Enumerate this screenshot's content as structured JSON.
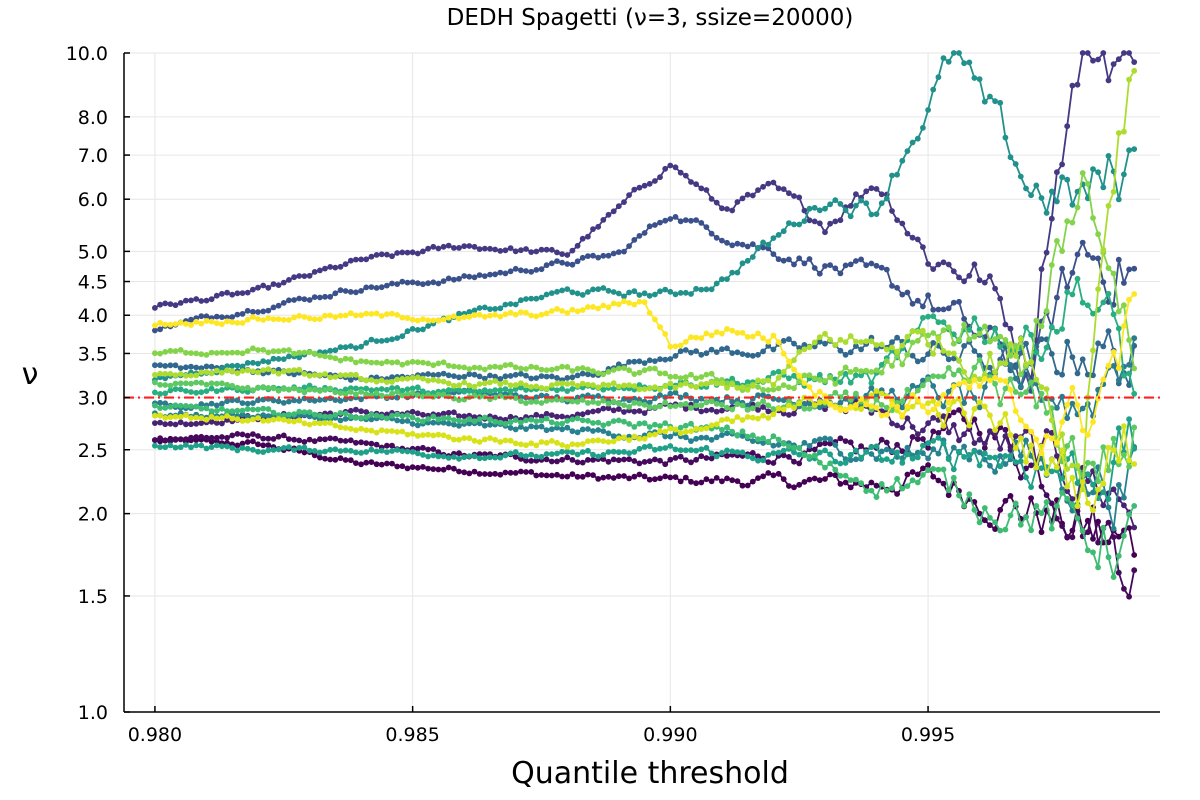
{
  "chart_data": {
    "type": "line",
    "title": "DEDH Spagetti (ν=3, ssize=20000)",
    "xlabel": "Quantile threshold",
    "ylabel": "ν",
    "xlim": [
      0.9794,
      0.9995
    ],
    "ylim": [
      1.0,
      10.0
    ],
    "yscale": "log",
    "grid": true,
    "legend": "none",
    "xticks": [
      0.98,
      0.985,
      0.99,
      0.995
    ],
    "xtick_labels": [
      "0.980",
      "0.985",
      "0.990",
      "0.995"
    ],
    "yticks": [
      1.0,
      1.5,
      2.0,
      2.5,
      3.0,
      3.5,
      4.0,
      4.5,
      5.0,
      6.0,
      7.0,
      8.0,
      10.0
    ],
    "ytick_labels": [
      "1.0",
      "1.5",
      "2.0",
      "2.5",
      "3.0",
      "3.5",
      "4.0",
      "4.5",
      "5.0",
      "6.0",
      "7.0",
      "8.0",
      "10.0"
    ],
    "reference_line": {
      "y": 3.0,
      "color": "#ff2020",
      "style": "dashdot"
    },
    "x_start": 0.98,
    "x_end": 0.999,
    "series": [
      {
        "color": "#440154",
        "points": [
          [
            0.98,
            2.58
          ],
          [
            0.982,
            2.55
          ],
          [
            0.984,
            2.38
          ],
          [
            0.986,
            2.33
          ],
          [
            0.988,
            2.28
          ],
          [
            0.99,
            2.25
          ],
          [
            0.992,
            2.24
          ],
          [
            0.994,
            2.22
          ],
          [
            0.995,
            2.26
          ],
          [
            0.996,
            2.12
          ],
          [
            0.997,
            2.02
          ],
          [
            0.998,
            1.88
          ],
          [
            0.999,
            1.74
          ]
        ]
      },
      {
        "color": "#450a5c",
        "points": [
          [
            0.98,
            2.6
          ],
          [
            0.982,
            2.62
          ],
          [
            0.984,
            2.55
          ],
          [
            0.986,
            2.45
          ],
          [
            0.988,
            2.42
          ],
          [
            0.99,
            2.4
          ],
          [
            0.992,
            2.45
          ],
          [
            0.994,
            2.5
          ],
          [
            0.995,
            2.62
          ],
          [
            0.996,
            2.75
          ],
          [
            0.997,
            2.4
          ],
          [
            0.998,
            2.0
          ],
          [
            0.999,
            1.72
          ]
        ]
      },
      {
        "color": "#482374",
        "points": [
          [
            0.98,
            2.73
          ],
          [
            0.982,
            2.8
          ],
          [
            0.984,
            2.85
          ],
          [
            0.986,
            2.8
          ],
          [
            0.988,
            2.82
          ],
          [
            0.99,
            2.9
          ],
          [
            0.992,
            2.92
          ],
          [
            0.994,
            2.88
          ],
          [
            0.995,
            2.7
          ],
          [
            0.996,
            2.6
          ],
          [
            0.997,
            2.45
          ],
          [
            0.998,
            2.3
          ],
          [
            0.999,
            2.05
          ]
        ]
      },
      {
        "color": "#443983",
        "points": [
          [
            0.98,
            4.12
          ],
          [
            0.982,
            4.35
          ],
          [
            0.984,
            4.85
          ],
          [
            0.986,
            5.1
          ],
          [
            0.988,
            4.95
          ],
          [
            0.989,
            5.8
          ],
          [
            0.99,
            6.8
          ],
          [
            0.991,
            5.8
          ],
          [
            0.992,
            6.2
          ],
          [
            0.993,
            5.5
          ],
          [
            0.994,
            6.4
          ],
          [
            0.995,
            4.9
          ],
          [
            0.996,
            4.6
          ],
          [
            0.997,
            3.4
          ],
          [
            0.998,
            10.0
          ],
          [
            0.999,
            10.0
          ]
        ]
      },
      {
        "color": "#3b518b",
        "points": [
          [
            0.98,
            3.82
          ],
          [
            0.982,
            4.1
          ],
          [
            0.984,
            4.4
          ],
          [
            0.986,
            4.55
          ],
          [
            0.988,
            4.8
          ],
          [
            0.989,
            4.95
          ],
          [
            0.99,
            5.7
          ],
          [
            0.991,
            5.3
          ],
          [
            0.992,
            5.0
          ],
          [
            0.993,
            4.75
          ],
          [
            0.994,
            4.55
          ],
          [
            0.995,
            4.2
          ],
          [
            0.996,
            3.7
          ],
          [
            0.997,
            3.2
          ],
          [
            0.998,
            5.0
          ],
          [
            0.999,
            4.7
          ]
        ]
      },
      {
        "color": "#31688e",
        "points": [
          [
            0.98,
            3.35
          ],
          [
            0.982,
            3.3
          ],
          [
            0.984,
            3.2
          ],
          [
            0.986,
            3.25
          ],
          [
            0.988,
            3.2
          ],
          [
            0.99,
            3.5
          ],
          [
            0.992,
            3.55
          ],
          [
            0.994,
            3.6
          ],
          [
            0.995,
            3.5
          ],
          [
            0.996,
            3.45
          ],
          [
            0.997,
            3.3
          ],
          [
            0.998,
            3.6
          ],
          [
            0.999,
            3.4
          ]
        ]
      },
      {
        "color": "#2c7c8e",
        "points": [
          [
            0.98,
            2.92
          ],
          [
            0.982,
            2.96
          ],
          [
            0.984,
            3.0
          ],
          [
            0.986,
            3.05
          ],
          [
            0.988,
            2.98
          ],
          [
            0.99,
            3.02
          ],
          [
            0.992,
            2.98
          ],
          [
            0.994,
            3.0
          ],
          [
            0.995,
            3.05
          ],
          [
            0.996,
            2.95
          ],
          [
            0.997,
            3.2
          ],
          [
            0.998,
            2.9
          ],
          [
            0.999,
            3.8
          ]
        ]
      },
      {
        "color": "#26828e",
        "points": [
          [
            0.98,
            2.82
          ],
          [
            0.982,
            2.82
          ],
          [
            0.984,
            2.78
          ],
          [
            0.986,
            2.72
          ],
          [
            0.988,
            2.68
          ],
          [
            0.99,
            2.62
          ],
          [
            0.992,
            2.55
          ],
          [
            0.994,
            2.5
          ],
          [
            0.995,
            2.45
          ],
          [
            0.996,
            2.52
          ],
          [
            0.997,
            2.4
          ],
          [
            0.998,
            2.25
          ],
          [
            0.999,
            2.2
          ]
        ]
      },
      {
        "color": "#21918c",
        "points": [
          [
            0.98,
            3.2
          ],
          [
            0.982,
            3.4
          ],
          [
            0.984,
            3.6
          ],
          [
            0.986,
            4.0
          ],
          [
            0.988,
            4.35
          ],
          [
            0.99,
            4.3
          ],
          [
            0.991,
            4.5
          ],
          [
            0.992,
            5.2
          ],
          [
            0.993,
            6.0
          ],
          [
            0.994,
            5.8
          ],
          [
            0.995,
            8.2
          ],
          [
            0.9955,
            10.0
          ],
          [
            0.996,
            8.5
          ],
          [
            0.997,
            6.2
          ],
          [
            0.998,
            6.0
          ],
          [
            0.999,
            6.8
          ]
        ]
      },
      {
        "color": "#1fa088",
        "points": [
          [
            0.98,
            2.55
          ],
          [
            0.982,
            2.5
          ],
          [
            0.984,
            2.5
          ],
          [
            0.986,
            2.45
          ],
          [
            0.988,
            2.45
          ],
          [
            0.99,
            2.5
          ],
          [
            0.992,
            2.45
          ],
          [
            0.994,
            2.42
          ],
          [
            0.995,
            2.45
          ],
          [
            0.996,
            2.5
          ],
          [
            0.997,
            2.4
          ],
          [
            0.998,
            2.3
          ],
          [
            0.999,
            2.5
          ]
        ]
      },
      {
        "color": "#28ae80",
        "points": [
          [
            0.98,
            3.05
          ],
          [
            0.982,
            3.1
          ],
          [
            0.984,
            3.1
          ],
          [
            0.986,
            3.05
          ],
          [
            0.988,
            3.1
          ],
          [
            0.99,
            3.15
          ],
          [
            0.992,
            3.2
          ],
          [
            0.994,
            3.2
          ],
          [
            0.995,
            3.8
          ],
          [
            0.996,
            3.9
          ],
          [
            0.997,
            3.6
          ],
          [
            0.998,
            4.5
          ],
          [
            0.999,
            3.1
          ]
        ]
      },
      {
        "color": "#3fbc73",
        "points": [
          [
            0.98,
            2.9
          ],
          [
            0.982,
            2.85
          ],
          [
            0.984,
            2.82
          ],
          [
            0.986,
            2.78
          ],
          [
            0.988,
            2.75
          ],
          [
            0.99,
            2.72
          ],
          [
            0.992,
            2.6
          ],
          [
            0.993,
            2.35
          ],
          [
            0.994,
            2.22
          ],
          [
            0.995,
            2.25
          ],
          [
            0.996,
            2.1
          ],
          [
            0.997,
            2.0
          ],
          [
            0.998,
            1.88
          ],
          [
            0.999,
            1.8
          ]
        ]
      },
      {
        "color": "#5ec962",
        "points": [
          [
            0.98,
            3.15
          ],
          [
            0.982,
            3.1
          ],
          [
            0.984,
            3.05
          ],
          [
            0.986,
            3.0
          ],
          [
            0.988,
            2.95
          ],
          [
            0.99,
            2.92
          ],
          [
            0.992,
            2.9
          ],
          [
            0.994,
            2.95
          ],
          [
            0.995,
            3.0
          ],
          [
            0.996,
            3.2
          ],
          [
            0.997,
            2.9
          ],
          [
            0.998,
            2.4
          ],
          [
            0.999,
            2.5
          ]
        ]
      },
      {
        "color": "#84d44b",
        "points": [
          [
            0.98,
            3.5
          ],
          [
            0.982,
            3.55
          ],
          [
            0.984,
            3.4
          ],
          [
            0.986,
            3.35
          ],
          [
            0.988,
            3.3
          ],
          [
            0.99,
            3.25
          ],
          [
            0.992,
            3.1
          ],
          [
            0.994,
            3.3
          ],
          [
            0.995,
            3.6
          ],
          [
            0.996,
            3.8
          ],
          [
            0.997,
            3.2
          ],
          [
            0.998,
            6.5
          ],
          [
            0.999,
            3.5
          ]
        ]
      },
      {
        "color": "#addc30",
        "points": [
          [
            0.98,
            3.25
          ],
          [
            0.982,
            3.3
          ],
          [
            0.984,
            3.2
          ],
          [
            0.986,
            3.15
          ],
          [
            0.988,
            3.12
          ],
          [
            0.99,
            3.1
          ],
          [
            0.992,
            3.15
          ],
          [
            0.993,
            3.7
          ],
          [
            0.994,
            3.6
          ],
          [
            0.995,
            3.7
          ],
          [
            0.996,
            3.4
          ],
          [
            0.997,
            3.5
          ],
          [
            0.998,
            2.2
          ],
          [
            0.999,
            10.0
          ]
        ]
      },
      {
        "color": "#d8e219",
        "points": [
          [
            0.98,
            2.82
          ],
          [
            0.982,
            2.78
          ],
          [
            0.984,
            2.68
          ],
          [
            0.986,
            2.6
          ],
          [
            0.988,
            2.55
          ],
          [
            0.99,
            2.65
          ],
          [
            0.992,
            2.8
          ],
          [
            0.993,
            3.0
          ],
          [
            0.994,
            2.95
          ],
          [
            0.995,
            2.9
          ],
          [
            0.996,
            2.8
          ],
          [
            0.997,
            2.5
          ],
          [
            0.998,
            2.2
          ],
          [
            0.999,
            2.6
          ]
        ]
      },
      {
        "color": "#fde725",
        "points": [
          [
            0.98,
            3.88
          ],
          [
            0.982,
            3.95
          ],
          [
            0.984,
            4.0
          ],
          [
            0.986,
            3.95
          ],
          [
            0.988,
            4.05
          ],
          [
            0.9895,
            4.2
          ],
          [
            0.99,
            3.6
          ],
          [
            0.991,
            3.8
          ],
          [
            0.992,
            3.7
          ],
          [
            0.9925,
            3.3
          ],
          [
            0.993,
            3.0
          ],
          [
            0.994,
            2.9
          ],
          [
            0.995,
            2.95
          ],
          [
            0.996,
            3.1
          ],
          [
            0.997,
            2.7
          ],
          [
            0.998,
            2.8
          ],
          [
            0.999,
            3.8
          ]
        ]
      }
    ]
  }
}
